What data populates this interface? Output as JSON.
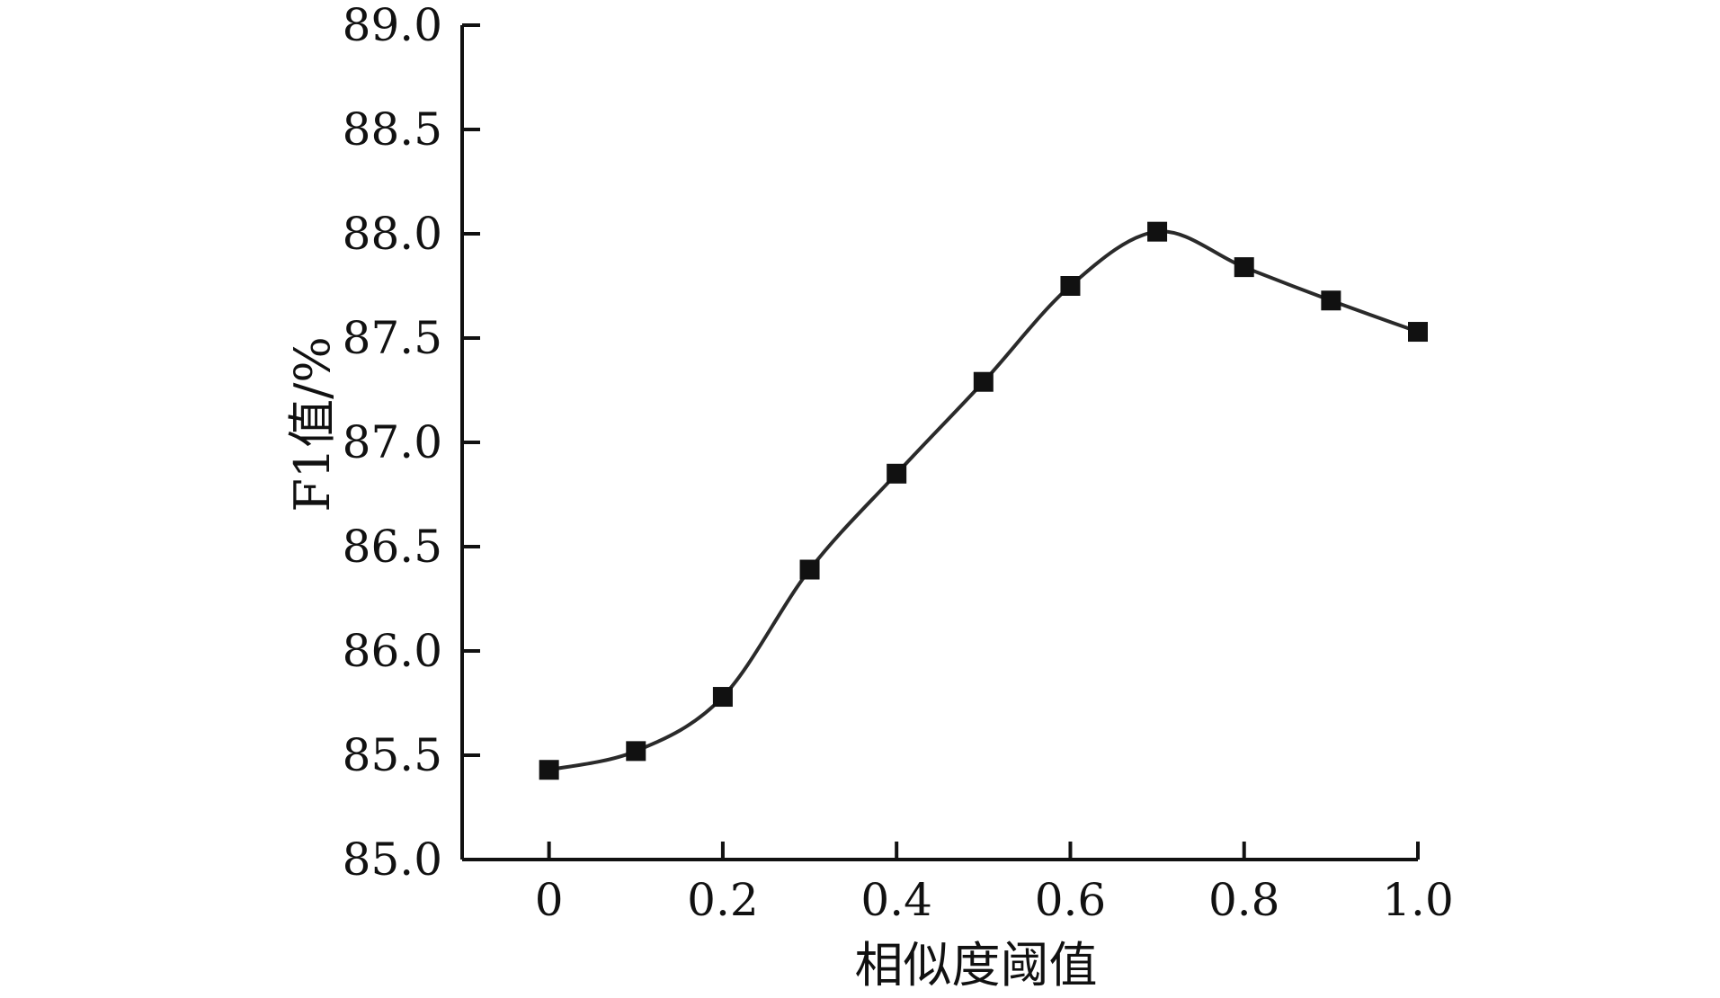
{
  "chart_data": {
    "type": "line",
    "title": "",
    "xlabel": "相似度阈值",
    "ylabel": "F1值/%",
    "x": [
      0,
      0.1,
      0.2,
      0.3,
      0.4,
      0.5,
      0.6,
      0.7,
      0.8,
      0.9,
      1.0
    ],
    "series": [
      {
        "values": [
          85.43,
          85.52,
          85.78,
          86.39,
          86.85,
          87.29,
          87.75,
          88.01,
          87.84,
          87.68,
          87.53
        ],
        "marker": "square",
        "color": "#111111"
      }
    ],
    "xlim": [
      -0.1,
      1.0
    ],
    "ylim": [
      85.0,
      89.0
    ],
    "x_ticks": [
      0,
      0.2,
      0.4,
      0.6,
      0.8,
      1.0
    ],
    "x_tick_labels": [
      "0",
      "0.2",
      "0.4",
      "0.6",
      "0.8",
      "1.0"
    ],
    "x_minor_ticks": [
      0,
      0.2,
      0.4,
      0.6,
      0.8,
      1.0
    ],
    "y_ticks": [
      85.0,
      85.5,
      86.0,
      86.5,
      87.0,
      87.5,
      88.0,
      88.5,
      89.0
    ],
    "y_tick_labels": [
      "85.0",
      "85.5",
      "86.0",
      "86.5",
      "87.0",
      "87.5",
      "88.0",
      "88.5",
      "89.0"
    ],
    "grid": false,
    "legend": "none"
  }
}
